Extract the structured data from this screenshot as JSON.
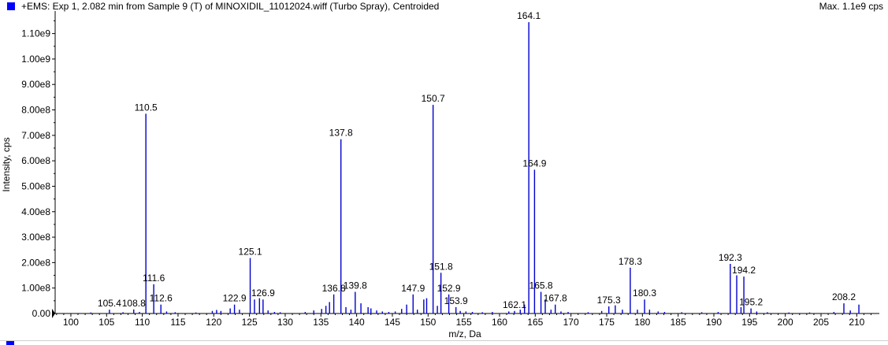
{
  "header": {
    "title": "+EMS: Exp 1, 2.082 min from Sample 9 (T) of MINOXIDIL_11012024.wiff (Turbo Spray), Centroided",
    "max_label": "Max. 1.1e9 cps"
  },
  "chart_data": {
    "type": "bar",
    "title": "+EMS: Exp 1, 2.082 min from Sample 9 (T) of MINOXIDIL_11012024.wiff (Turbo Spray), Centroided",
    "xlabel": "m/z, Da",
    "ylabel": "Intensity, cps",
    "xlim": [
      97.8,
      212.5
    ],
    "ylim": [
      0,
      1170000000.0
    ],
    "x_ticks": [
      100,
      105,
      110,
      115,
      120,
      125,
      130,
      135,
      140,
      145,
      150,
      155,
      160,
      165,
      170,
      175,
      180,
      185,
      190,
      195,
      200,
      205,
      210
    ],
    "y_ticks": [
      {
        "value": 0,
        "label": "0.00"
      },
      {
        "value": 100000000.0,
        "label": "1.00e8"
      },
      {
        "value": 200000000.0,
        "label": "2.00e8"
      },
      {
        "value": 300000000.0,
        "label": "3.00e8"
      },
      {
        "value": 400000000.0,
        "label": "4.00e8"
      },
      {
        "value": 500000000.0,
        "label": "5.00e8"
      },
      {
        "value": 600000000.0,
        "label": "6.00e8"
      },
      {
        "value": 700000000.0,
        "label": "7.00e8"
      },
      {
        "value": 800000000.0,
        "label": "8.00e8"
      },
      {
        "value": 900000000.0,
        "label": "9.00e8"
      },
      {
        "value": 1000000000.0,
        "label": "1.00e9"
      },
      {
        "value": 1100000000.0,
        "label": "1.10e9"
      }
    ],
    "series_color": "#0000cc",
    "peaks": [
      {
        "x": 102.8,
        "y": 4000000.0
      },
      {
        "x": 105.4,
        "y": 15000000.0,
        "label": "105.4"
      },
      {
        "x": 107.3,
        "y": 5000000.0
      },
      {
        "x": 108.8,
        "y": 16000000.0,
        "label": "108.8"
      },
      {
        "x": 109.6,
        "y": 6000000.0
      },
      {
        "x": 110.5,
        "y": 785000000.0,
        "label": "110.5"
      },
      {
        "x": 111.6,
        "y": 115000000.0,
        "label": "111.6"
      },
      {
        "x": 112.6,
        "y": 35000000.0,
        "label": "112.6"
      },
      {
        "x": 113.4,
        "y": 8000000.0
      },
      {
        "x": 114.6,
        "y": 5000000.0
      },
      {
        "x": 117.5,
        "y": 4000000.0
      },
      {
        "x": 119.8,
        "y": 10000000.0
      },
      {
        "x": 120.4,
        "y": 14000000.0
      },
      {
        "x": 121.0,
        "y": 10000000.0
      },
      {
        "x": 122.3,
        "y": 20000000.0
      },
      {
        "x": 122.9,
        "y": 35000000.0,
        "label": "122.9"
      },
      {
        "x": 123.6,
        "y": 15000000.0
      },
      {
        "x": 125.1,
        "y": 218000000.0,
        "label": "125.1"
      },
      {
        "x": 125.7,
        "y": 55000000.0
      },
      {
        "x": 126.4,
        "y": 60000000.0
      },
      {
        "x": 126.9,
        "y": 55000000.0,
        "label": "126.9"
      },
      {
        "x": 127.6,
        "y": 12000000.0
      },
      {
        "x": 128.5,
        "y": 6000000.0
      },
      {
        "x": 129.3,
        "y": 5000000.0
      },
      {
        "x": 132.8,
        "y": 6000000.0
      },
      {
        "x": 134.0,
        "y": 12000000.0
      },
      {
        "x": 135.1,
        "y": 18000000.0
      },
      {
        "x": 135.7,
        "y": 30000000.0
      },
      {
        "x": 136.2,
        "y": 45000000.0
      },
      {
        "x": 136.8,
        "y": 75000000.0,
        "label": "136.8"
      },
      {
        "x": 137.8,
        "y": 685000000.0,
        "label": "137.8"
      },
      {
        "x": 138.5,
        "y": 25000000.0
      },
      {
        "x": 139.2,
        "y": 15000000.0
      },
      {
        "x": 139.8,
        "y": 85000000.0,
        "label": "139.8"
      },
      {
        "x": 140.6,
        "y": 40000000.0
      },
      {
        "x": 141.6,
        "y": 25000000.0
      },
      {
        "x": 142.0,
        "y": 20000000.0
      },
      {
        "x": 142.8,
        "y": 12000000.0
      },
      {
        "x": 143.6,
        "y": 8000000.0
      },
      {
        "x": 144.5,
        "y": 6000000.0
      },
      {
        "x": 145.4,
        "y": 8000000.0
      },
      {
        "x": 146.3,
        "y": 18000000.0
      },
      {
        "x": 147.0,
        "y": 35000000.0
      },
      {
        "x": 147.9,
        "y": 75000000.0,
        "label": "147.9"
      },
      {
        "x": 148.5,
        "y": 15000000.0
      },
      {
        "x": 149.4,
        "y": 55000000.0
      },
      {
        "x": 149.8,
        "y": 60000000.0
      },
      {
        "x": 150.7,
        "y": 820000000.0,
        "label": "150.7"
      },
      {
        "x": 151.3,
        "y": 30000000.0
      },
      {
        "x": 151.8,
        "y": 160000000.0,
        "label": "151.8"
      },
      {
        "x": 152.9,
        "y": 75000000.0,
        "label": "152.9"
      },
      {
        "x": 153.9,
        "y": 25000000.0,
        "label": "153.9"
      },
      {
        "x": 154.5,
        "y": 10000000.0
      },
      {
        "x": 155.3,
        "y": 8000000.0
      },
      {
        "x": 156.2,
        "y": 6000000.0
      },
      {
        "x": 157.6,
        "y": 5000000.0
      },
      {
        "x": 159.0,
        "y": 6000000.0
      },
      {
        "x": 161.3,
        "y": 8000000.0
      },
      {
        "x": 162.1,
        "y": 10000000.0,
        "label": "162.1"
      },
      {
        "x": 162.9,
        "y": 15000000.0
      },
      {
        "x": 163.5,
        "y": 35000000.0
      },
      {
        "x": 164.1,
        "y": 1145000000.0,
        "label": "164.1"
      },
      {
        "x": 164.9,
        "y": 565000000.0,
        "label": "164.9"
      },
      {
        "x": 165.8,
        "y": 85000000.0,
        "label": "165.8"
      },
      {
        "x": 166.4,
        "y": 55000000.0
      },
      {
        "x": 167.2,
        "y": 15000000.0
      },
      {
        "x": 167.8,
        "y": 35000000.0,
        "label": "167.8"
      },
      {
        "x": 168.6,
        "y": 8000000.0
      },
      {
        "x": 169.6,
        "y": 6000000.0
      },
      {
        "x": 172.4,
        "y": 5000000.0
      },
      {
        "x": 174.3,
        "y": 10000000.0
      },
      {
        "x": 175.3,
        "y": 28000000.0,
        "label": "175.3"
      },
      {
        "x": 176.2,
        "y": 32000000.0
      },
      {
        "x": 177.2,
        "y": 15000000.0
      },
      {
        "x": 178.3,
        "y": 180000000.0,
        "label": "178.3"
      },
      {
        "x": 179.3,
        "y": 15000000.0
      },
      {
        "x": 180.3,
        "y": 55000000.0,
        "label": "180.3"
      },
      {
        "x": 181.0,
        "y": 15000000.0
      },
      {
        "x": 182.2,
        "y": 8000000.0
      },
      {
        "x": 183.1,
        "y": 6000000.0
      },
      {
        "x": 185.5,
        "y": 5000000.0
      },
      {
        "x": 188.3,
        "y": 5000000.0
      },
      {
        "x": 190.6,
        "y": 6000000.0
      },
      {
        "x": 192.3,
        "y": 195000000.0,
        "label": "192.3"
      },
      {
        "x": 193.2,
        "y": 150000000.0
      },
      {
        "x": 193.8,
        "y": 25000000.0
      },
      {
        "x": 194.2,
        "y": 145000000.0,
        "label": "194.2"
      },
      {
        "x": 195.2,
        "y": 20000000.0,
        "label": "195.2"
      },
      {
        "x": 196.0,
        "y": 8000000.0
      },
      {
        "x": 197.5,
        "y": 5000000.0
      },
      {
        "x": 200.5,
        "y": 4000000.0
      },
      {
        "x": 203.4,
        "y": 4000000.0
      },
      {
        "x": 206.8,
        "y": 6000000.0
      },
      {
        "x": 208.2,
        "y": 40000000.0,
        "label": "208.2"
      },
      {
        "x": 209.1,
        "y": 12000000.0
      },
      {
        "x": 210.3,
        "y": 35000000.0
      }
    ]
  }
}
